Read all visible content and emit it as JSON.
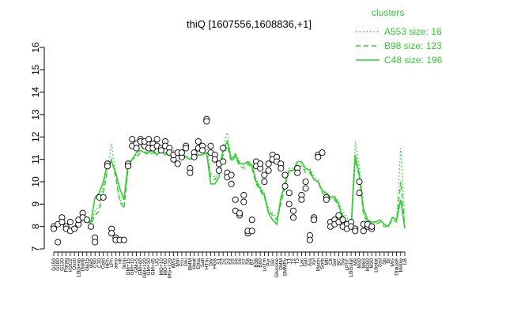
{
  "chart_data": {
    "type": "line",
    "title": "thiQ [1607556,1608836,+1]",
    "xlabel": "",
    "ylabel": "",
    "ylim": [
      7,
      16
    ],
    "yticks": [
      7,
      8,
      9,
      10,
      11,
      12,
      13,
      14,
      15,
      16
    ],
    "grid": false,
    "legend": {
      "title": "clusters",
      "placement": "top-right",
      "color": "#33cc33",
      "entries": [
        {
          "label": "A553 size: 16",
          "dash": "dotted"
        },
        {
          "label": "B98 size: 123",
          "dash": "dashed"
        },
        {
          "label": "C48 size: 196",
          "dash": "solid"
        }
      ]
    },
    "x_tick_labels": [
      "G150",
      "G180",
      "G130",
      "Paraq",
      "H2O2",
      "Oxctl",
      "LBGexp",
      "Diami",
      "dia15",
      "dia5",
      "C90",
      "C30",
      "Cold",
      "HPh",
      "LPh",
      "aero",
      "nit",
      "ferm",
      "GM+15",
      "GM+10",
      "GM+5",
      "GM+60",
      "GM+120",
      "GM+30",
      "GM+45",
      "UG",
      "MG+10",
      "MG+60",
      "MG+120",
      "M/G",
      "Mal",
      "Fru",
      "Glu",
      "BMM",
      "Heat",
      "Etha",
      "Salt",
      "HTm",
      "Gly",
      "HGs",
      "S1",
      "S2",
      "S3",
      "S4",
      "S5",
      "S6",
      "S7",
      "S8",
      "BT",
      "B38",
      "B60",
      "LoTm",
      "Pyr",
      "Glc",
      "Glucone",
      "SMM",
      "SMMPy",
      "T1",
      "T2",
      "T3",
      "Lac",
      "Gal",
      "Ara",
      "Xyl",
      "Mann",
      "Sorb",
      "Mtl",
      "Cit",
      "Ser",
      "BC",
      "Sw",
      "LPhT",
      "LBGstat",
      "M9",
      "M40",
      "M63",
      "M200",
      "M30",
      "Lbstat",
      "Ssd",
      "Sb",
      "BI",
      "MG",
      "Diauxie",
      "M40w",
      "LB"
    ],
    "series": [
      {
        "name": "A553 size: 16",
        "dash": "dotted",
        "values": [
          8.1,
          8.0,
          8.2,
          8.0,
          7.9,
          7.9,
          8.2,
          8.3,
          8.4,
          8.1,
          8.7,
          8.9,
          9.8,
          10.6,
          11.7,
          10.3,
          9.2,
          8.9,
          10.5,
          11.0,
          11.2,
          11.6,
          11.4,
          11.3,
          11.5,
          11.2,
          11.6,
          11.3,
          11.5,
          11.4,
          11.3,
          11.1,
          11.2,
          11.0,
          11.2,
          11.4,
          11.3,
          11.6,
          10.4,
          10.2,
          10.5,
          11.6,
          12.2,
          11.0,
          11.3,
          10.9,
          10.7,
          10.9,
          10.8,
          10.1,
          9.8,
          9.5,
          8.8,
          8.6,
          8.4,
          9.2,
          10.0,
          10.6,
          10.6,
          10.8,
          10.8,
          10.5,
          10.6,
          10.2,
          10.1,
          9.6,
          9.5,
          9.3,
          9.4,
          9.1,
          8.7,
          8.4,
          8.1,
          11.8,
          10.7,
          8.6,
          8.3,
          8.2,
          8.2,
          8.3,
          8.1,
          8.0,
          8.4,
          8.3,
          11.5,
          8.4
        ]
      },
      {
        "name": "B98 size: 123",
        "dash": "dashed",
        "values": [
          8.0,
          8.0,
          8.1,
          8.0,
          7.9,
          7.9,
          8.1,
          8.3,
          8.3,
          8.1,
          8.5,
          8.7,
          9.5,
          10.5,
          11.0,
          10.2,
          9.1,
          8.8,
          10.6,
          11.0,
          11.1,
          11.3,
          11.3,
          11.2,
          11.3,
          11.2,
          11.4,
          11.2,
          11.4,
          11.3,
          11.2,
          11.1,
          11.1,
          11.0,
          11.1,
          11.2,
          11.2,
          11.3,
          10.2,
          10.1,
          10.4,
          11.2,
          11.6,
          10.9,
          11.1,
          10.7,
          10.6,
          10.8,
          10.6,
          9.9,
          9.6,
          9.3,
          8.7,
          8.5,
          8.3,
          9.0,
          9.8,
          10.5,
          10.5,
          10.7,
          10.7,
          10.4,
          10.4,
          10.1,
          10.0,
          9.5,
          9.4,
          9.2,
          9.2,
          8.9,
          8.5,
          8.2,
          8.0,
          11.0,
          10.2,
          8.5,
          8.2,
          8.1,
          8.1,
          8.2,
          8.0,
          8.0,
          8.3,
          8.2,
          10.0,
          8.0
        ]
      },
      {
        "name": "C48 size: 196",
        "dash": "solid",
        "values": [
          8.1,
          8.1,
          8.2,
          8.0,
          7.9,
          8.0,
          8.2,
          8.3,
          8.4,
          8.2,
          9.3,
          9.5,
          10.0,
          10.8,
          10.9,
          10.4,
          9.7,
          9.2,
          10.8,
          11.0,
          11.3,
          11.4,
          11.3,
          11.3,
          11.4,
          11.2,
          11.4,
          11.2,
          11.4,
          11.3,
          11.2,
          11.1,
          11.1,
          11.0,
          11.1,
          11.2,
          11.2,
          11.3,
          9.9,
          9.9,
          10.2,
          11.4,
          11.8,
          11.0,
          11.2,
          10.8,
          10.8,
          10.9,
          10.7,
          10.0,
          9.7,
          9.4,
          8.6,
          8.3,
          8.1,
          9.3,
          9.9,
          10.5,
          10.5,
          10.9,
          10.9,
          10.6,
          10.5,
          10.1,
          10.0,
          9.6,
          9.5,
          9.3,
          9.3,
          9.0,
          8.3,
          8.0,
          7.9,
          11.2,
          10.3,
          8.8,
          8.3,
          8.2,
          8.2,
          8.3,
          8.1,
          8.0,
          8.4,
          8.3,
          9.2,
          7.9
        ]
      }
    ],
    "points": [
      [
        0,
        8.0
      ],
      [
        0,
        7.9
      ],
      [
        1,
        7.3
      ],
      [
        1,
        8.1
      ],
      [
        2,
        8.4
      ],
      [
        2,
        8.2
      ],
      [
        3,
        8.0
      ],
      [
        3,
        7.9
      ],
      [
        4,
        7.8
      ],
      [
        4,
        8.2
      ],
      [
        5,
        7.9
      ],
      [
        6,
        8.1
      ],
      [
        6,
        8.3
      ],
      [
        7,
        8.6
      ],
      [
        7,
        8.4
      ],
      [
        8,
        8.3
      ],
      [
        9,
        8.0
      ],
      [
        10,
        7.5
      ],
      [
        10,
        7.3
      ],
      [
        11,
        9.3
      ],
      [
        12,
        9.3
      ],
      [
        13,
        10.8
      ],
      [
        13,
        10.7
      ],
      [
        14,
        7.9
      ],
      [
        14,
        7.7
      ],
      [
        15,
        7.5
      ],
      [
        15,
        7.4
      ],
      [
        16,
        7.4
      ],
      [
        17,
        7.4
      ],
      [
        18,
        10.8
      ],
      [
        18,
        10.7
      ],
      [
        19,
        11.9
      ],
      [
        19,
        11.6
      ],
      [
        20,
        11.7
      ],
      [
        20,
        11.5
      ],
      [
        21,
        11.9
      ],
      [
        21,
        11.8
      ],
      [
        22,
        11.6
      ],
      [
        22,
        11.8
      ],
      [
        23,
        11.5
      ],
      [
        23,
        11.9
      ],
      [
        24,
        11.7
      ],
      [
        24,
        11.5
      ],
      [
        25,
        11.9
      ],
      [
        25,
        11.6
      ],
      [
        26,
        11.5
      ],
      [
        26,
        11.4
      ],
      [
        27,
        11.8
      ],
      [
        27,
        11.6
      ],
      [
        28,
        11.5
      ],
      [
        28,
        11.3
      ],
      [
        29,
        11.0
      ],
      [
        29,
        11.2
      ],
      [
        30,
        11.3
      ],
      [
        30,
        10.8
      ],
      [
        31,
        11.1
      ],
      [
        31,
        11.3
      ],
      [
        32,
        11.6
      ],
      [
        32,
        11.5
      ],
      [
        33,
        10.6
      ],
      [
        33,
        10.4
      ],
      [
        34,
        11.3
      ],
      [
        34,
        11.1
      ],
      [
        35,
        11.8
      ],
      [
        35,
        11.5
      ],
      [
        36,
        11.6
      ],
      [
        36,
        11.4
      ],
      [
        37,
        12.8
      ],
      [
        37,
        12.7
      ],
      [
        38,
        11.6
      ],
      [
        38,
        11.3
      ],
      [
        39,
        11.2
      ],
      [
        39,
        11.0
      ],
      [
        40,
        10.5
      ],
      [
        40,
        10.8
      ],
      [
        41,
        11.5
      ],
      [
        41,
        10.9
      ],
      [
        42,
        10.4
      ],
      [
        42,
        10.2
      ],
      [
        43,
        9.9
      ],
      [
        43,
        10.3
      ],
      [
        44,
        9.2
      ],
      [
        44,
        8.7
      ],
      [
        45,
        8.5
      ],
      [
        45,
        8.6
      ],
      [
        46,
        9.4
      ],
      [
        46,
        9.1
      ],
      [
        47,
        7.7
      ],
      [
        47,
        7.8
      ],
      [
        48,
        8.3
      ],
      [
        48,
        7.8
      ],
      [
        49,
        10.9
      ],
      [
        49,
        10.7
      ],
      [
        50,
        10.6
      ],
      [
        50,
        10.8
      ],
      [
        51,
        10.0
      ],
      [
        51,
        10.3
      ],
      [
        52,
        10.5
      ],
      [
        52,
        10.8
      ],
      [
        53,
        11.2
      ],
      [
        53,
        11.0
      ],
      [
        54,
        11.1
      ],
      [
        54,
        10.9
      ],
      [
        55,
        10.8
      ],
      [
        55,
        10.6
      ],
      [
        56,
        10.3
      ],
      [
        56,
        9.8
      ],
      [
        57,
        9.5
      ],
      [
        57,
        9.0
      ],
      [
        58,
        8.7
      ],
      [
        58,
        8.4
      ],
      [
        59,
        10.6
      ],
      [
        59,
        10.4
      ],
      [
        60,
        9.4
      ],
      [
        60,
        9.2
      ],
      [
        61,
        9.7
      ],
      [
        61,
        10.0
      ],
      [
        62,
        7.6
      ],
      [
        62,
        7.4
      ],
      [
        63,
        8.4
      ],
      [
        63,
        8.3
      ],
      [
        64,
        11.2
      ],
      [
        64,
        11.1
      ],
      [
        65,
        11.3
      ],
      [
        66,
        9.3
      ],
      [
        66,
        9.2
      ],
      [
        67,
        8.2
      ],
      [
        67,
        8.0
      ],
      [
        68,
        8.3
      ],
      [
        68,
        8.1
      ],
      [
        69,
        8.5
      ],
      [
        69,
        8.2
      ],
      [
        70,
        8.3
      ],
      [
        70,
        8.0
      ],
      [
        71,
        8.1
      ],
      [
        71,
        7.9
      ],
      [
        72,
        8.2
      ],
      [
        72,
        8.0
      ],
      [
        73,
        7.9
      ],
      [
        73,
        7.8
      ],
      [
        74,
        10.0
      ],
      [
        74,
        9.5
      ],
      [
        75,
        7.8
      ],
      [
        75,
        8.1
      ],
      [
        76,
        8.0
      ],
      [
        76,
        8.1
      ],
      [
        77,
        7.9
      ],
      [
        77,
        8.0
      ]
    ]
  }
}
